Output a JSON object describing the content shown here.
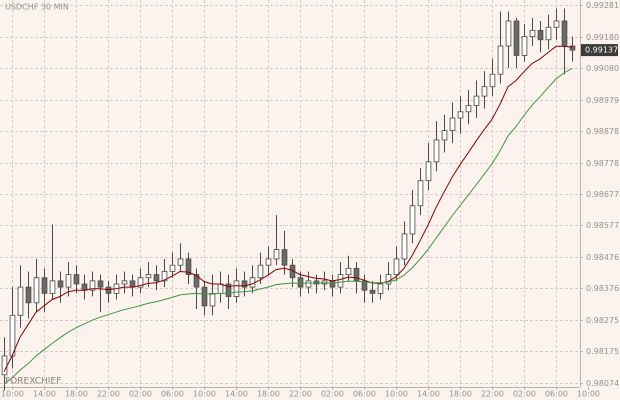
{
  "chart_data": {
    "type": "candlestick",
    "title": "USDCHF 30 MIN",
    "watermark": "FOREXCHIEF",
    "open": [
      0.981,
      0.9816,
      0.9829,
      0.9838,
      0.9833,
      0.9841,
      0.9836,
      0.984,
      0.9838,
      0.9842,
      0.9839,
      0.9837,
      0.984,
      0.9838,
      0.9836,
      0.9839,
      0.984,
      0.9838,
      0.9841,
      0.9842,
      0.984,
      0.9843,
      0.9845,
      0.9847,
      0.9842,
      0.9838,
      0.9832,
      0.9836,
      0.9839,
      0.9835,
      0.984,
      0.9838,
      0.9841,
      0.9845,
      0.9847,
      0.985,
      0.9845,
      0.9841,
      0.9838,
      0.984,
      0.9839,
      0.984,
      0.9838,
      0.9842,
      0.9844,
      0.984,
      0.9837,
      0.9836,
      0.9839,
      0.9842,
      0.9847,
      0.9855,
      0.9864,
      0.9872,
      0.9878,
      0.9885,
      0.9888,
      0.9892,
      0.9894,
      0.9896,
      0.9899,
      0.9902,
      0.9906,
      0.9915,
      0.9923,
      0.9912,
      0.9918,
      0.992,
      0.9917,
      0.9921,
      0.9923,
      0.9915
    ],
    "high": [
      0.9822,
      0.9838,
      0.9845,
      0.9843,
      0.9847,
      0.9844,
      0.9858,
      0.9843,
      0.9846,
      0.9845,
      0.9842,
      0.9843,
      0.9842,
      0.984,
      0.9842,
      0.9843,
      0.9842,
      0.9844,
      0.9846,
      0.9845,
      0.9847,
      0.9849,
      0.9852,
      0.9849,
      0.9844,
      0.984,
      0.9842,
      0.9843,
      0.9842,
      0.9844,
      0.9843,
      0.9845,
      0.9849,
      0.9851,
      0.9861,
      0.9856,
      0.9847,
      0.9843,
      0.9843,
      0.9842,
      0.9843,
      0.9842,
      0.9846,
      0.9848,
      0.9846,
      0.9842,
      0.984,
      0.9842,
      0.9846,
      0.9851,
      0.9859,
      0.9869,
      0.9876,
      0.9884,
      0.9891,
      0.9893,
      0.9897,
      0.9899,
      0.9901,
      0.9904,
      0.9907,
      0.9911,
      0.9926,
      0.9926,
      0.9924,
      0.9922,
      0.9924,
      0.9923,
      0.9925,
      0.9927,
      0.9927,
      0.9918
    ],
    "low": [
      0.9805,
      0.9812,
      0.9825,
      0.9828,
      0.983,
      0.983,
      0.9834,
      0.9833,
      0.9835,
      0.9836,
      0.9834,
      0.9835,
      0.983,
      0.9833,
      0.9834,
      0.9836,
      0.9835,
      0.9836,
      0.9838,
      0.9837,
      0.9838,
      0.9841,
      0.9843,
      0.9839,
      0.9831,
      0.9829,
      0.9829,
      0.9833,
      0.9831,
      0.9833,
      0.9835,
      0.9836,
      0.9839,
      0.9842,
      0.9845,
      0.9842,
      0.9838,
      0.9835,
      0.9836,
      0.9836,
      0.9837,
      0.9835,
      0.9836,
      0.984,
      0.9836,
      0.9833,
      0.9833,
      0.9834,
      0.9837,
      0.984,
      0.9845,
      0.9852,
      0.9861,
      0.9869,
      0.9875,
      0.9881,
      0.9884,
      0.9887,
      0.989,
      0.9892,
      0.9895,
      0.9899,
      0.9903,
      0.9908,
      0.9908,
      0.991,
      0.9915,
      0.9913,
      0.9914,
      0.9917,
      0.9906,
      0.991
    ],
    "close": [
      0.9816,
      0.9829,
      0.9838,
      0.9833,
      0.9841,
      0.9836,
      0.984,
      0.9838,
      0.9842,
      0.9839,
      0.9837,
      0.984,
      0.9838,
      0.9836,
      0.9839,
      0.984,
      0.9838,
      0.9841,
      0.9842,
      0.984,
      0.9843,
      0.9845,
      0.9847,
      0.9842,
      0.9838,
      0.9832,
      0.9836,
      0.9839,
      0.9835,
      0.984,
      0.9838,
      0.9841,
      0.9845,
      0.9847,
      0.985,
      0.9845,
      0.9841,
      0.9838,
      0.984,
      0.9839,
      0.984,
      0.9838,
      0.9842,
      0.9844,
      0.984,
      0.9837,
      0.9836,
      0.9839,
      0.9842,
      0.9847,
      0.9855,
      0.9864,
      0.9872,
      0.9878,
      0.9885,
      0.9888,
      0.9892,
      0.9894,
      0.9896,
      0.9899,
      0.9902,
      0.9906,
      0.9915,
      0.9923,
      0.9912,
      0.9918,
      0.992,
      0.9917,
      0.9921,
      0.9923,
      0.9915,
      0.99137
    ],
    "up_color": "#ffffff",
    "down_color": "#6a6a6a",
    "candle_stroke": "#4a4a4a",
    "moving_averages": [
      {
        "color": "#8b0000",
        "values": [
          0.9811,
          0.9816,
          0.9822,
          0.9826,
          0.983,
          0.9832,
          0.9834,
          0.9835,
          0.98365,
          0.9837,
          0.9837,
          0.98375,
          0.98375,
          0.98372,
          0.98375,
          0.9838,
          0.9838,
          0.98385,
          0.98392,
          0.98394,
          0.98402,
          0.98415,
          0.9843,
          0.98428,
          0.98418,
          0.98398,
          0.9839,
          0.9839,
          0.98382,
          0.98385,
          0.98384,
          0.9839,
          0.98403,
          0.98418,
          0.98436,
          0.9844,
          0.98434,
          0.9842,
          0.98414,
          0.98408,
          0.98406,
          0.984,
          0.98404,
          0.98412,
          0.9841,
          0.98402,
          0.98393,
          0.98392,
          0.98398,
          0.98413,
          0.9844,
          0.9848,
          0.98528,
          0.98578,
          0.98634,
          0.98683,
          0.9873,
          0.98771,
          0.98808,
          0.98846,
          0.98882,
          0.98916,
          0.98964,
          0.9902,
          0.9904,
          0.99068,
          0.99094,
          0.99109,
          0.99129,
          0.99149,
          0.99149,
          0.99146
        ]
      },
      {
        "color": "#3a9a3a",
        "values": [
          0.9807,
          0.9809,
          0.98115,
          0.98135,
          0.9816,
          0.9818,
          0.982,
          0.98218,
          0.98236,
          0.9825,
          0.98262,
          0.98274,
          0.98284,
          0.98292,
          0.983,
          0.98308,
          0.98314,
          0.98321,
          0.98328,
          0.98333,
          0.9834,
          0.98347,
          0.98355,
          0.98358,
          0.9836,
          0.98358,
          0.98358,
          0.9836,
          0.9836,
          0.98364,
          0.98365,
          0.98368,
          0.98374,
          0.9838,
          0.98388,
          0.98391,
          0.98393,
          0.98392,
          0.98393,
          0.98393,
          0.98394,
          0.98393,
          0.98396,
          0.98399,
          0.98399,
          0.98397,
          0.98394,
          0.98394,
          0.98396,
          0.98403,
          0.98418,
          0.98441,
          0.98469,
          0.985,
          0.98536,
          0.98571,
          0.98607,
          0.9864,
          0.98673,
          0.98706,
          0.9874,
          0.98774,
          0.98815,
          0.98863,
          0.98893,
          0.98928,
          0.98961,
          0.98988,
          0.99017,
          0.99045,
          0.99064,
          0.99079
        ]
      }
    ],
    "last_price": 0.99137,
    "xlim": [
      -0.5,
      72
    ],
    "xticks": [
      {
        "value": 1,
        "label": "10:00"
      },
      {
        "value": 5,
        "label": "14:00"
      },
      {
        "value": 9,
        "label": "18:00"
      },
      {
        "value": 13,
        "label": "22:00"
      },
      {
        "value": 17,
        "label": "02:00"
      },
      {
        "value": 21,
        "label": "06:00"
      },
      {
        "value": 25,
        "label": "10:00"
      },
      {
        "value": 29,
        "label": "14:00"
      },
      {
        "value": 33,
        "label": "18:00"
      },
      {
        "value": 37,
        "label": "22:00"
      },
      {
        "value": 41,
        "label": "02:00"
      },
      {
        "value": 45,
        "label": "06:00"
      },
      {
        "value": 49,
        "label": "10:00"
      },
      {
        "value": 53,
        "label": "14:00"
      },
      {
        "value": 57,
        "label": "18:00"
      },
      {
        "value": 61,
        "label": "22:00"
      },
      {
        "value": 65,
        "label": "02:00"
      },
      {
        "value": 69,
        "label": "06:00"
      },
      {
        "value": 73,
        "label": "10:00"
      }
    ],
    "ylim": [
      0.98061,
      0.99297
    ],
    "yticks": [
      0.99281,
      {
        "value": 0.9918,
        "label": "0.99180"
      },
      {
        "value": 0.9908,
        "label": "0.99080"
      },
      0.98979,
      0.98878,
      0.98778,
      0.98677,
      0.98577,
      0.98476,
      0.98376,
      0.98275,
      0.98175,
      0.98074
    ],
    "grid": true
  }
}
